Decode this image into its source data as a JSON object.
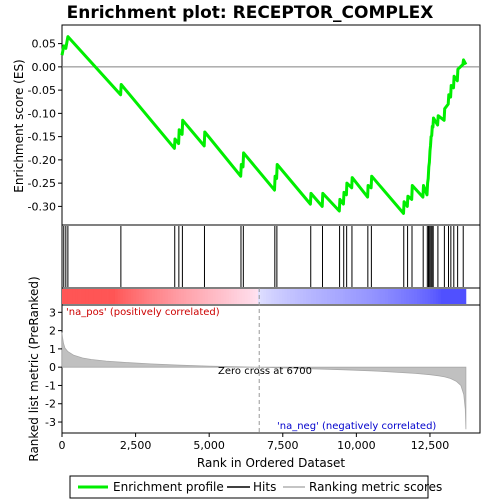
{
  "chart_data": {
    "type": "line",
    "title": "Enrichment plot: RECEPTOR_COMPLEX",
    "top_panel": {
      "ylabel": "Enrichment score (ES)",
      "ylim": [
        -0.34,
        0.09
      ],
      "yticks": [
        0.05,
        0.0,
        -0.05,
        -0.1,
        -0.15,
        -0.2,
        -0.25,
        -0.3
      ],
      "ytick_labels": [
        "0.05",
        "0.00",
        "-0.05",
        "-0.10",
        "-0.15",
        "-0.20",
        "-0.25",
        "-0.30"
      ],
      "series": [
        {
          "name": "Enrichment profile",
          "color": "#00ee00",
          "x": [
            0,
            60,
            130,
            200,
            1990,
            2010,
            3820,
            3840,
            3960,
            3980,
            4080,
            4100,
            4830,
            4850,
            6070,
            6090,
            6150,
            6170,
            7220,
            7240,
            7290,
            7310,
            8440,
            8460,
            8840,
            8860,
            9420,
            9440,
            9560,
            9580,
            9660,
            9680,
            9840,
            9860,
            10380,
            10400,
            10500,
            10520,
            11600,
            11620,
            11730,
            11750,
            11880,
            11900,
            12260,
            12280,
            12400,
            12420,
            12440,
            12460,
            12480,
            12500,
            12520,
            12540,
            12560,
            12580,
            12600,
            12620,
            12760,
            12780,
            12980,
            13000,
            13120,
            13140,
            13200,
            13220,
            13300,
            13320,
            13430,
            13450,
            13620,
            13640,
            13720
          ],
          "y": [
            0.025,
            0.045,
            0.04,
            0.065,
            -0.06,
            -0.038,
            -0.175,
            -0.155,
            -0.165,
            -0.135,
            -0.145,
            -0.115,
            -0.17,
            -0.14,
            -0.235,
            -0.21,
            -0.215,
            -0.185,
            -0.265,
            -0.235,
            -0.24,
            -0.21,
            -0.295,
            -0.272,
            -0.3,
            -0.272,
            -0.31,
            -0.285,
            -0.295,
            -0.27,
            -0.275,
            -0.25,
            -0.26,
            -0.238,
            -0.28,
            -0.255,
            -0.26,
            -0.235,
            -0.315,
            -0.29,
            -0.3,
            -0.278,
            -0.285,
            -0.255,
            -0.28,
            -0.255,
            -0.275,
            -0.25,
            -0.24,
            -0.215,
            -0.205,
            -0.18,
            -0.17,
            -0.15,
            -0.148,
            -0.128,
            -0.13,
            -0.11,
            -0.125,
            -0.105,
            -0.115,
            -0.09,
            -0.08,
            -0.06,
            -0.065,
            -0.04,
            -0.045,
            -0.02,
            -0.03,
            -0.005,
            0.005,
            0.015,
            0.005
          ]
        }
      ]
    },
    "hits": {
      "name": "Hits",
      "positions": [
        60,
        130,
        200,
        2000,
        3830,
        3970,
        4090,
        4840,
        6080,
        6160,
        7230,
        7300,
        8450,
        8850,
        9430,
        9570,
        9670,
        9850,
        10390,
        10510,
        11610,
        11740,
        11890,
        12270,
        12410,
        12450,
        12490,
        12530,
        12570,
        12610,
        12770,
        12990,
        13130,
        13210,
        13310,
        13440,
        13630
      ]
    },
    "bottom_panel": {
      "ylabel": "Ranked list metric (PreRanked)",
      "ylim": [
        -3.6,
        3.4
      ],
      "yticks": [
        3,
        2,
        1,
        0,
        -1,
        -2,
        -3
      ],
      "ytick_labels": [
        "3",
        "2",
        "1",
        "0",
        "-1",
        "-2",
        "-3"
      ],
      "series_name": "Ranking metric scores",
      "profile_x": [
        0,
        20,
        50,
        100,
        200,
        400,
        700,
        1000,
        1500,
        2000,
        3000,
        4000,
        5000,
        6000,
        6700,
        7500,
        8500,
        9500,
        10500,
        11000,
        11500,
        12000,
        12500,
        12800,
        13000,
        13200,
        13400,
        13550,
        13650,
        13700,
        13720
      ],
      "profile_y": [
        1.9,
        1.6,
        1.3,
        1.05,
        0.85,
        0.65,
        0.5,
        0.42,
        0.33,
        0.27,
        0.18,
        0.11,
        0.06,
        0.02,
        0.0,
        -0.04,
        -0.09,
        -0.14,
        -0.2,
        -0.24,
        -0.29,
        -0.34,
        -0.41,
        -0.47,
        -0.53,
        -0.62,
        -0.78,
        -1.0,
        -1.5,
        -2.3,
        -3.4
      ],
      "zero_cross_label": "Zero cross at 6700",
      "zero_cross_x": 6700,
      "pos_label": "'na_pos' (positively correlated)",
      "neg_label": "'na_neg' (negatively correlated)"
    },
    "xaxis": {
      "xlabel": "Rank in Ordered Dataset",
      "xlim": [
        0,
        14200
      ],
      "xticks": [
        0,
        2500,
        5000,
        7500,
        10000,
        12500
      ],
      "xtick_labels": [
        "0",
        "2,500",
        "5,000",
        "7,500",
        "10,000",
        "12,500"
      ]
    },
    "legend": {
      "placement": "bottom",
      "entries": [
        "Enrichment profile",
        "Hits",
        "Ranking metric scores"
      ]
    },
    "colors": {
      "profile": "#00ee00",
      "pos_label": "#cc0000",
      "neg_label": "#0000cc",
      "metric_fill": "#c0c0c0"
    }
  }
}
